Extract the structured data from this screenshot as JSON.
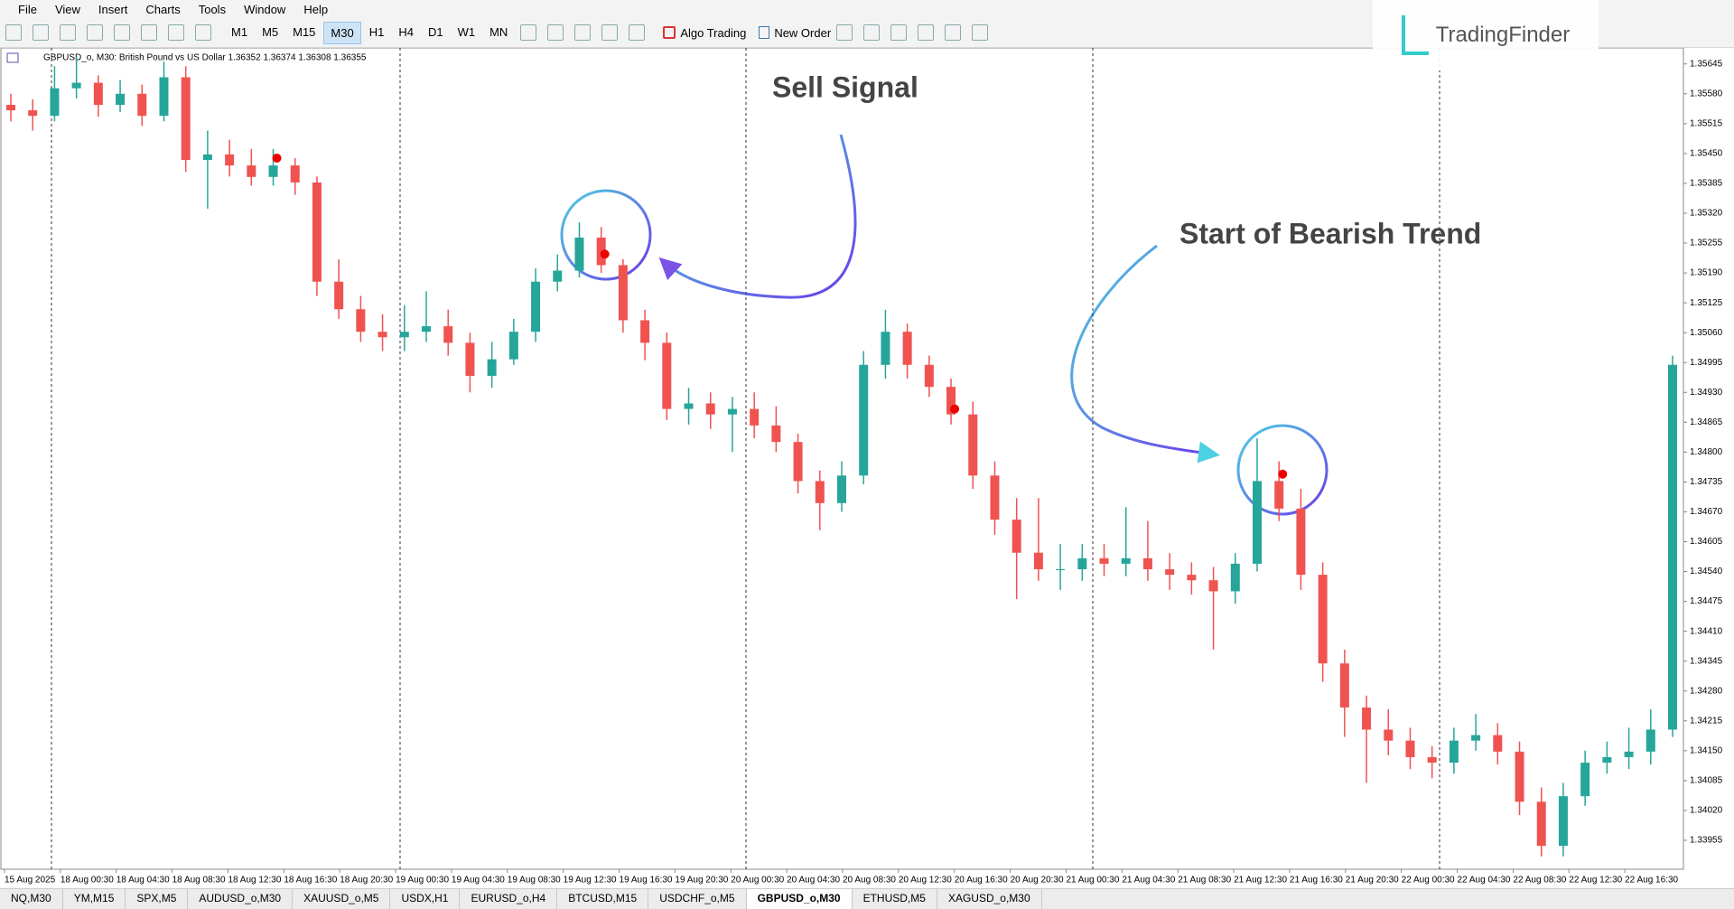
{
  "menu": [
    "File",
    "View",
    "Insert",
    "Charts",
    "Tools",
    "Window",
    "Help"
  ],
  "toolbar": {
    "timeframes": [
      "M1",
      "M5",
      "M15",
      "M30",
      "H1",
      "H4",
      "D1",
      "W1",
      "MN"
    ],
    "algo_trading": "Algo Trading",
    "new_order": "New Order"
  },
  "logo": "TradingFinder",
  "tabs": [
    "NQ,M30",
    "YM,M15",
    "SPX,M5",
    "AUDUSD_o,M30",
    "XAUUSD_o,M5",
    "USDX,H1",
    "EURUSD_o,H4",
    "BTCUSD,M15",
    "USDCHF_o,M5",
    "GBPUSD_o,M30",
    "ETHUSD,M5",
    "XAGUSD_o,M30"
  ],
  "active_tab": "GBPUSD_o,M30",
  "chart_data": {
    "type": "candlestick",
    "title": "GBPUSD_o, M30:  British Pound vs US Dollar  1.36352 1.36374 1.36308 1.36355",
    "up_color": "#26a69a",
    "down_color": "#ef5350",
    "annotations": [
      "Sell Signal",
      "Start of Bearish Trend"
    ],
    "ylim": [
      1.33892,
      1.35674
    ],
    "yticks": [
      1.35645,
      {
        "value": 1.3558,
        "label": "1.35580"
      },
      1.35515,
      {
        "value": 1.3545,
        "label": "1.35450"
      },
      1.35385,
      {
        "value": 1.3532,
        "label": "1.35320"
      },
      1.35255,
      {
        "value": 1.3519,
        "label": "1.35190"
      },
      1.35125,
      {
        "value": 1.3506,
        "label": "1.35060"
      },
      1.34995,
      {
        "value": 1.3493,
        "label": "1.34930"
      },
      1.34865,
      {
        "value": 1.348,
        "label": "1.34800"
      },
      1.34735,
      {
        "value": 1.3467,
        "label": "1.34670"
      },
      1.34605,
      {
        "value": 1.3454,
        "label": "1.34540"
      },
      1.34475,
      {
        "value": 1.3441,
        "label": "1.34410"
      },
      1.34345,
      {
        "value": 1.3428,
        "label": "1.34280"
      },
      1.34215,
      {
        "value": 1.3415,
        "label": "1.34150"
      },
      1.34085,
      {
        "value": 1.3402,
        "label": "1.34020"
      },
      1.33955
    ],
    "x_labels": [
      "15 Aug 2025",
      "18 Aug 00:30",
      "18 Aug 04:30",
      "18 Aug 08:30",
      "18 Aug 12:30",
      "18 Aug 16:30",
      "18 Aug 20:30",
      "19 Aug 00:30",
      "19 Aug 04:30",
      "19 Aug 08:30",
      "19 Aug 12:30",
      "19 Aug 16:30",
      "19 Aug 20:30",
      "20 Aug 00:30",
      "20 Aug 04:30",
      "20 Aug 08:30",
      "20 Aug 12:30",
      "20 Aug 16:30",
      "20 Aug 20:30",
      "21 Aug 00:30",
      "21 Aug 04:30",
      "21 Aug 08:30",
      "21 Aug 12:30",
      "21 Aug 16:30",
      "21 Aug 20:30",
      "22 Aug 00:30",
      "22 Aug 04:30",
      "22 Aug 08:30",
      "22 Aug 12:30",
      "22 Aug 16:30"
    ],
    "ohlc": [
      [
        1.35556,
        1.3558,
        1.3552,
        1.35544
      ],
      [
        1.35544,
        1.35568,
        1.355,
        1.35532
      ],
      [
        1.35532,
        1.3564,
        1.3552,
        1.35592
      ],
      [
        1.35592,
        1.3566,
        1.3557,
        1.35604
      ],
      [
        1.35604,
        1.3562,
        1.3553,
        1.35556
      ],
      [
        1.35556,
        1.3561,
        1.3554,
        1.3558
      ],
      [
        1.3558,
        1.356,
        1.3551,
        1.35532
      ],
      [
        1.35532,
        1.3565,
        1.3552,
        1.35616
      ],
      [
        1.35616,
        1.3564,
        1.3541,
        1.35436
      ],
      [
        1.35436,
        1.355,
        1.3533,
        1.35448
      ],
      [
        1.35448,
        1.3548,
        1.354,
        1.35424
      ],
      [
        1.35424,
        1.3546,
        1.3538,
        1.35399
      ],
      [
        1.35399,
        1.3546,
        1.3538,
        1.35424
      ],
      [
        1.35424,
        1.3544,
        1.3536,
        1.35387
      ],
      [
        1.35387,
        1.354,
        1.3514,
        1.35171
      ],
      [
        1.35171,
        1.3522,
        1.3509,
        1.35111
      ],
      [
        1.35111,
        1.3514,
        1.3504,
        1.35062
      ],
      [
        1.35062,
        1.351,
        1.3502,
        1.3505
      ],
      [
        1.3505,
        1.3512,
        1.3502,
        1.35062
      ],
      [
        1.35062,
        1.3515,
        1.3504,
        1.35074
      ],
      [
        1.35074,
        1.3511,
        1.3501,
        1.35038
      ],
      [
        1.35038,
        1.3506,
        1.3493,
        1.34966
      ],
      [
        1.34966,
        1.3504,
        1.3494,
        1.35002
      ],
      [
        1.35002,
        1.3509,
        1.3499,
        1.35062
      ],
      [
        1.35062,
        1.352,
        1.3504,
        1.35171
      ],
      [
        1.35171,
        1.3523,
        1.3515,
        1.35195
      ],
      [
        1.35195,
        1.353,
        1.3518,
        1.35267
      ],
      [
        1.35267,
        1.3529,
        1.3519,
        1.35207
      ],
      [
        1.35207,
        1.3522,
        1.3506,
        1.35087
      ],
      [
        1.35087,
        1.3511,
        1.35,
        1.35038
      ],
      [
        1.35038,
        1.3506,
        1.3487,
        1.34894
      ],
      [
        1.34894,
        1.3494,
        1.3486,
        1.34906
      ],
      [
        1.34906,
        1.3493,
        1.3485,
        1.34882
      ],
      [
        1.34882,
        1.3492,
        1.348,
        1.34894
      ],
      [
        1.34894,
        1.3493,
        1.3483,
        1.34858
      ],
      [
        1.34858,
        1.349,
        1.348,
        1.34822
      ],
      [
        1.34822,
        1.3484,
        1.3471,
        1.34737
      ],
      [
        1.34737,
        1.3476,
        1.3463,
        1.34689
      ],
      [
        1.34689,
        1.3478,
        1.3467,
        1.34749
      ],
      [
        1.34749,
        1.3502,
        1.3473,
        1.3499
      ],
      [
        1.3499,
        1.3511,
        1.3496,
        1.35062
      ],
      [
        1.35062,
        1.3508,
        1.3496,
        1.3499
      ],
      [
        1.3499,
        1.3501,
        1.3492,
        1.34942
      ],
      [
        1.34942,
        1.3496,
        1.3486,
        1.34882
      ],
      [
        1.34882,
        1.3491,
        1.3472,
        1.34749
      ],
      [
        1.34749,
        1.3478,
        1.3462,
        1.34653
      ],
      [
        1.34653,
        1.347,
        1.3448,
        1.34581
      ],
      [
        1.34581,
        1.347,
        1.3452,
        1.34545
      ],
      [
        1.34545,
        1.346,
        1.345,
        1.34545
      ],
      [
        1.34545,
        1.346,
        1.3452,
        1.34569
      ],
      [
        1.34569,
        1.346,
        1.3453,
        1.34557
      ],
      [
        1.34557,
        1.3468,
        1.3453,
        1.34569
      ],
      [
        1.34569,
        1.3465,
        1.3452,
        1.34545
      ],
      [
        1.34545,
        1.3458,
        1.345,
        1.34533
      ],
      [
        1.34533,
        1.3456,
        1.3449,
        1.34521
      ],
      [
        1.34521,
        1.3455,
        1.3437,
        1.34497
      ],
      [
        1.34497,
        1.3458,
        1.3447,
        1.34557
      ],
      [
        1.34557,
        1.3483,
        1.3454,
        1.34737
      ],
      [
        1.34737,
        1.3478,
        1.3465,
        1.34677
      ],
      [
        1.34677,
        1.3472,
        1.345,
        1.34533
      ],
      [
        1.34533,
        1.3456,
        1.343,
        1.3434
      ],
      [
        1.3434,
        1.3437,
        1.3418,
        1.34244
      ],
      [
        1.34244,
        1.3427,
        1.3408,
        1.34196
      ],
      [
        1.34196,
        1.3424,
        1.3414,
        1.34172
      ],
      [
        1.34172,
        1.342,
        1.3411,
        1.34136
      ],
      [
        1.34136,
        1.3416,
        1.3409,
        1.34124
      ],
      [
        1.34124,
        1.342,
        1.341,
        1.34172
      ],
      [
        1.34172,
        1.3423,
        1.3415,
        1.34184
      ],
      [
        1.34184,
        1.3421,
        1.3412,
        1.34148
      ],
      [
        1.34148,
        1.3417,
        1.3401,
        1.34039
      ],
      [
        1.34039,
        1.3407,
        1.3392,
        1.33943
      ],
      [
        1.33943,
        1.3408,
        1.3392,
        1.34051
      ],
      [
        1.34051,
        1.3415,
        1.3403,
        1.34124
      ],
      [
        1.34124,
        1.3417,
        1.341,
        1.34136
      ],
      [
        1.34136,
        1.342,
        1.3411,
        1.34148
      ],
      [
        1.34148,
        1.3424,
        1.3412,
        1.34196
      ],
      [
        1.34196,
        1.3501,
        1.3418,
        1.3499
      ]
    ],
    "signals": [
      {
        "index": 12,
        "price": 1.3544
      },
      {
        "index": 27,
        "price": 1.35231
      },
      {
        "index": 43,
        "price": 1.34894
      },
      {
        "index": 58,
        "price": 1.34752
      }
    ]
  }
}
